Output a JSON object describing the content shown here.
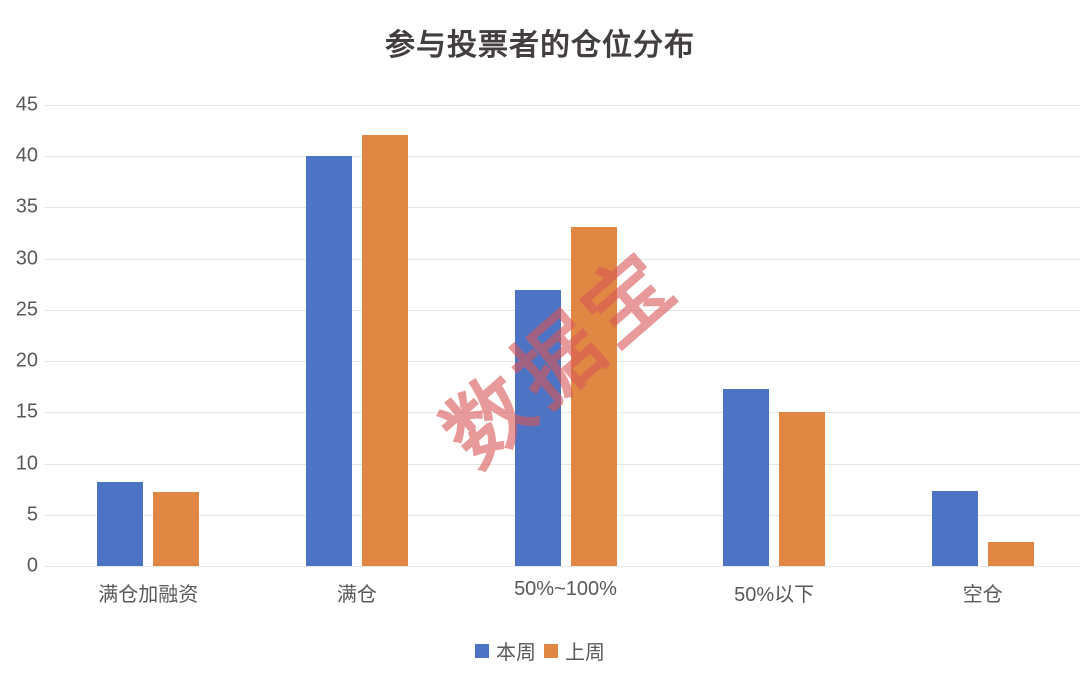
{
  "chart_data": {
    "type": "bar",
    "title": "参与投票者的仓位分布",
    "categories": [
      "满仓加融资",
      "满仓",
      "50%~100%",
      "50%以下",
      "空仓"
    ],
    "series": [
      {
        "name": "本周",
        "color": "#4d73c4",
        "values": [
          8.2,
          40.0,
          26.9,
          17.3,
          7.3
        ]
      },
      {
        "name": "上周",
        "color": "#e08744",
        "values": [
          7.2,
          42.1,
          33.1,
          15.0,
          2.3
        ]
      }
    ],
    "xlabel": "",
    "ylabel": "",
    "ylim": [
      0,
      45
    ],
    "yticks": [
      0,
      5,
      10,
      15,
      20,
      25,
      30,
      35,
      40,
      45
    ],
    "grid": true,
    "gridline_color": "#e6e6e6",
    "legend_position": "bottom",
    "watermark": {
      "text": "数据宝",
      "color": "#d95757",
      "opacity": 0.6,
      "rotation_deg": -41
    }
  }
}
